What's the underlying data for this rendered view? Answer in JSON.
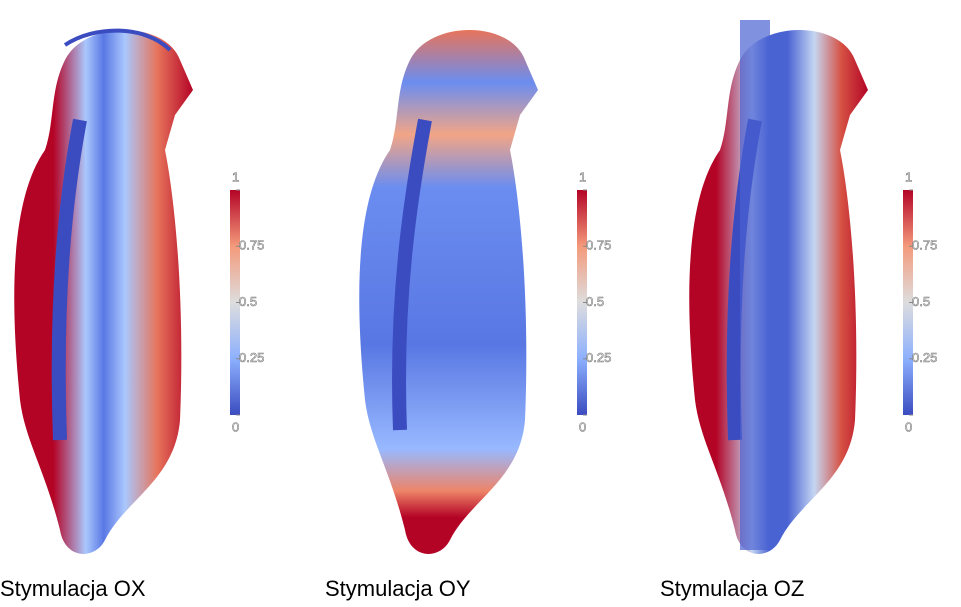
{
  "panels": [
    {
      "caption": "Stymulacja OX",
      "colorbar": {
        "lim": [
          0,
          1
        ],
        "ticks": [
          0,
          0.25,
          0.5,
          0.75,
          1
        ]
      }
    },
    {
      "caption": "Stymulacja OY",
      "colorbar": {
        "lim": [
          0,
          1
        ],
        "ticks": [
          0,
          0.25,
          0.5,
          0.75,
          1
        ]
      }
    },
    {
      "caption": "Stymulacja OZ",
      "colorbar": {
        "lim": [
          0,
          1
        ],
        "ticks": [
          0,
          0.25,
          0.5,
          0.75,
          1
        ]
      }
    }
  ]
}
